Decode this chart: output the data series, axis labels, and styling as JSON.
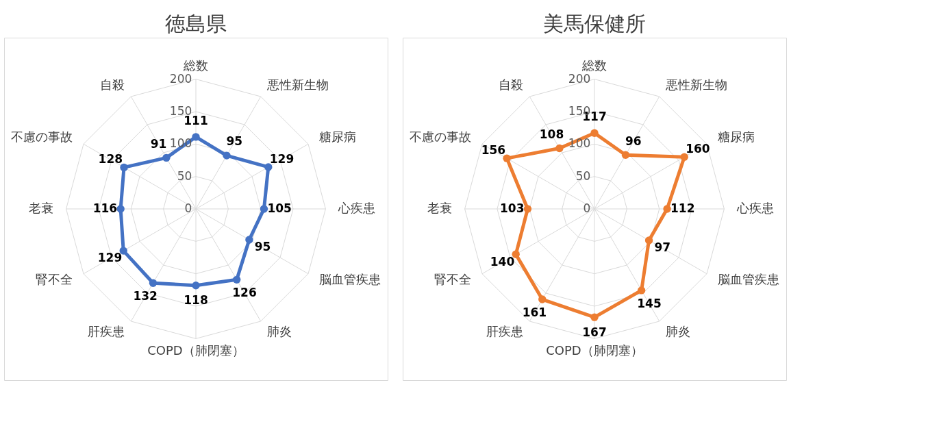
{
  "chart_data": [
    {
      "type": "radar",
      "title": "徳島県",
      "categories": [
        "総数",
        "悪性新生物",
        "糖尿病",
        "心疾患",
        "脳血管疾患",
        "肺炎",
        "COPD（肺閉塞）",
        "肝疾患",
        "腎不全",
        "老衰",
        "不慮の事故",
        "自殺"
      ],
      "series": [
        {
          "color": "#4472c4",
          "values": [
            111,
            95,
            129,
            105,
            95,
            126,
            118,
            132,
            129,
            116,
            128,
            91
          ]
        }
      ],
      "ylim": [
        0,
        200
      ],
      "yticks": [
        0,
        50,
        100,
        150,
        200
      ],
      "data_labels": true,
      "marker": "circle",
      "grid": true
    },
    {
      "type": "radar",
      "title": "美馬保健所",
      "categories": [
        "総数",
        "悪性新生物",
        "糖尿病",
        "心疾患",
        "脳血管疾患",
        "肺炎",
        "COPD（肺閉塞）",
        "肝疾患",
        "腎不全",
        "老衰",
        "不慮の事故",
        "自殺"
      ],
      "series": [
        {
          "color": "#ed7d31",
          "values": [
            117,
            96,
            160,
            112,
            97,
            145,
            167,
            161,
            140,
            103,
            156,
            108
          ]
        }
      ],
      "ylim": [
        0,
        200
      ],
      "yticks": [
        0,
        50,
        100,
        150,
        200
      ],
      "data_labels": true,
      "marker": "circle",
      "grid": true
    }
  ]
}
